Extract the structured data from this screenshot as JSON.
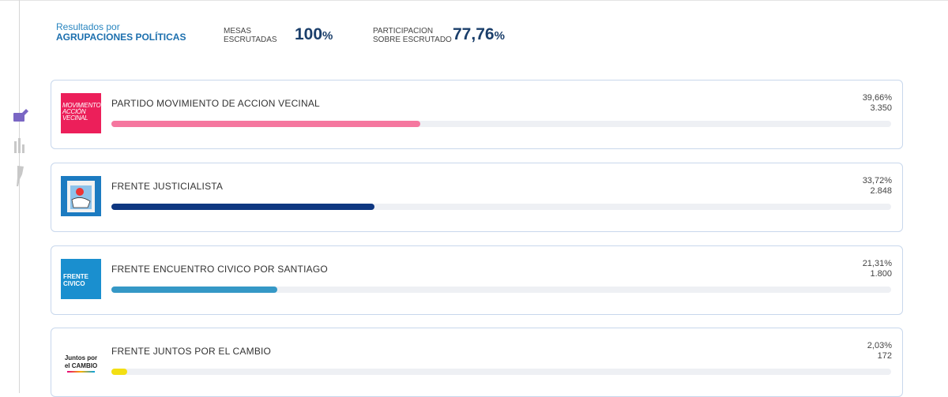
{
  "header": {
    "title_line1": "Resultados por",
    "title_line2": "AGRUPACIONES POLÍTICAS",
    "mesas_label_1": "MESAS",
    "mesas_label_2": "ESCRUTADAS",
    "mesas_value": "100",
    "mesas_unit": "%",
    "part_label_1": "PARTICIPACION",
    "part_label_2": "SOBRE ESCRUTADO",
    "part_value": "77,76",
    "part_unit": "%"
  },
  "parties": [
    {
      "name": "PARTIDO MOVIMIENTO DE ACCION VECINAL",
      "pct": 39.66,
      "pct_label": "39,66%",
      "votes": "3.350",
      "color": "#f5779f",
      "logo_text": "MOVIMIENTO ACCIÓN VECINAL"
    },
    {
      "name": "FRENTE JUSTICIALISTA",
      "pct": 33.72,
      "pct_label": "33,72%",
      "votes": "2.848",
      "color": "#0e3781"
    },
    {
      "name": "FRENTE ENCUENTRO CIVICO POR SANTIAGO",
      "pct": 21.31,
      "pct_label": "21,31%",
      "votes": "1.800",
      "color": "#3598c6",
      "logo_text": "FRENTE CIVICO"
    },
    {
      "name": "FRENTE JUNTOS POR EL CAMBIO",
      "pct": 2.03,
      "pct_label": "2,03%",
      "votes": "172",
      "color": "#f3df13",
      "logo_text": "Juntos por el CAMBIO"
    }
  ]
}
